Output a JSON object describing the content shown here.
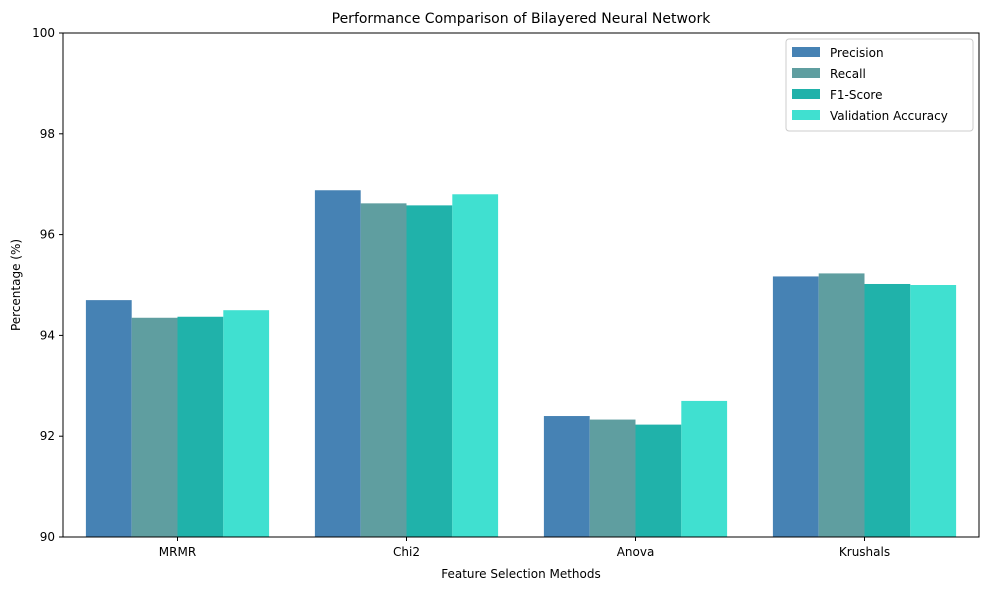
{
  "chart_data": {
    "type": "bar",
    "title": "Performance Comparison of Bilayered Neural Network",
    "xlabel": "Feature Selection Methods",
    "ylabel": "Percentage (%)",
    "ylim": [
      90,
      100
    ],
    "yticks": [
      90,
      92,
      94,
      96,
      98,
      100
    ],
    "categories": [
      "MRMR",
      "Chi2",
      "Anova",
      "Krushals"
    ],
    "series": [
      {
        "name": "Precision",
        "color": "#4682b4",
        "values": [
          94.7,
          96.88,
          92.4,
          95.17
        ]
      },
      {
        "name": "Recall",
        "color": "#5f9ea0",
        "values": [
          94.35,
          96.62,
          92.33,
          95.23
        ]
      },
      {
        "name": "F1-Score",
        "color": "#20b2aa",
        "values": [
          94.37,
          96.58,
          92.23,
          95.02
        ]
      },
      {
        "name": "Validation Accuracy",
        "color": "#40e0d0",
        "values": [
          94.5,
          96.8,
          92.7,
          95.0
        ]
      }
    ],
    "grid": false,
    "legend_position": "top-right"
  }
}
